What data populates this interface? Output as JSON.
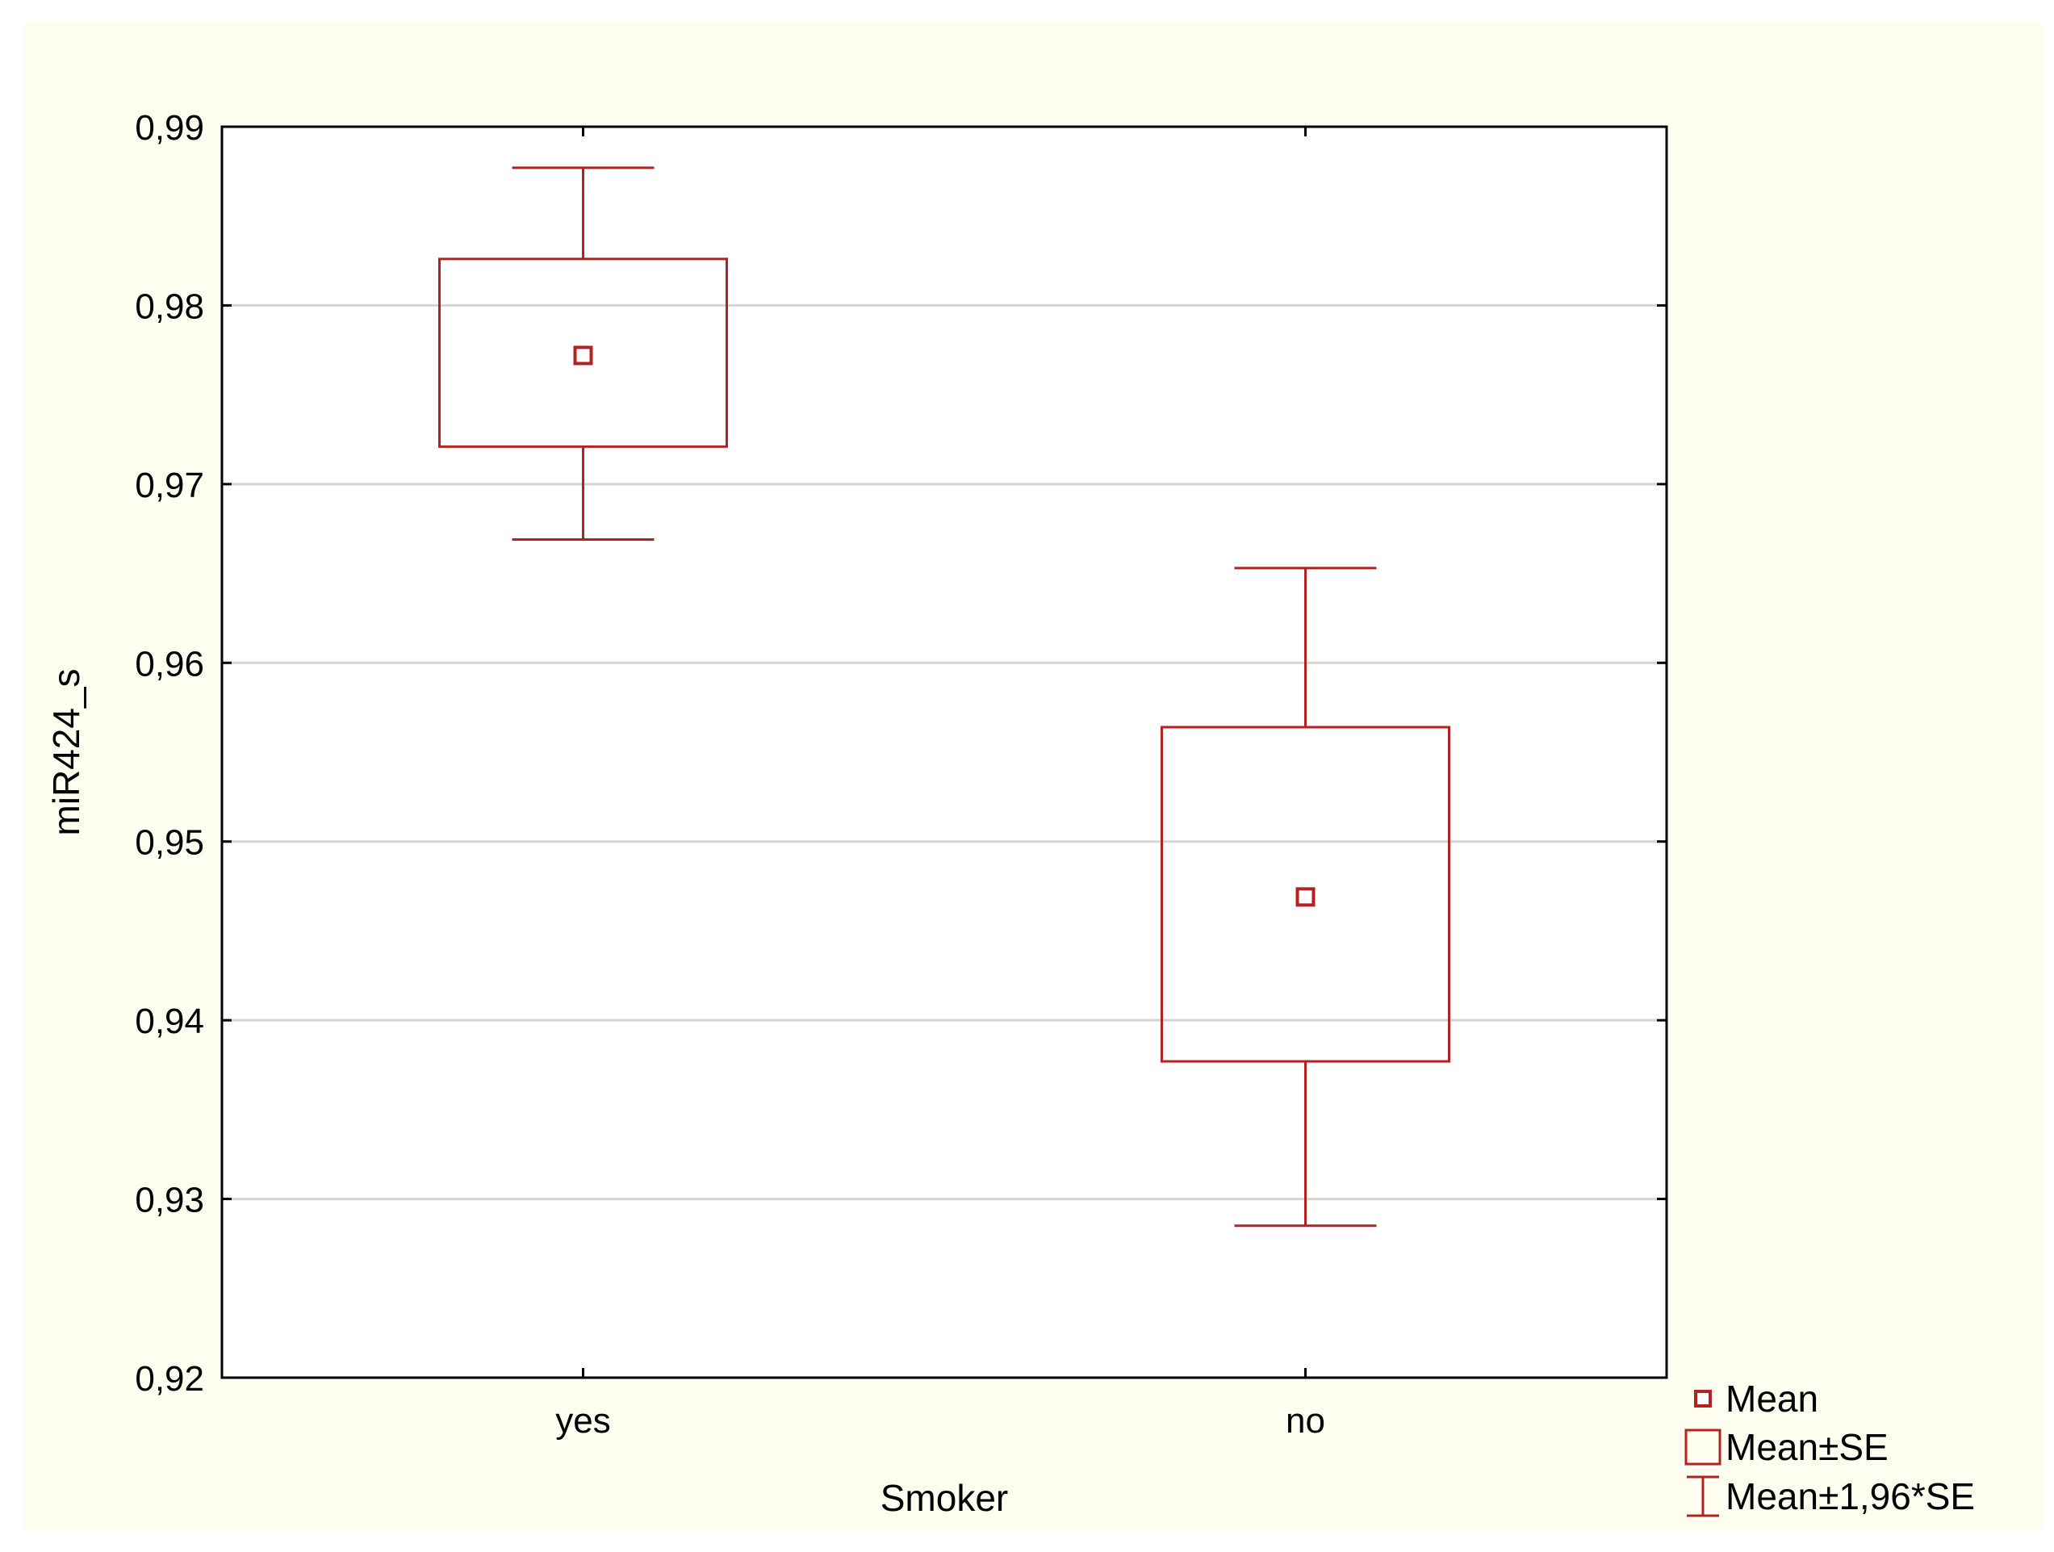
{
  "chart_data": {
    "type": "box",
    "title": "",
    "xlabel": "Smoker",
    "ylabel": "miR424_s",
    "categories": [
      "yes",
      "no"
    ],
    "ylim": [
      0.92,
      0.99
    ],
    "yticks": [
      0.92,
      0.93,
      0.94,
      0.95,
      0.96,
      0.97,
      0.98,
      0.99
    ],
    "ytick_labels": [
      "0,92",
      "0,93",
      "0,94",
      "0,95",
      "0,96",
      "0,97",
      "0,98",
      "0,99"
    ],
    "grid": true,
    "color": "#b22222",
    "background": "#fdfdf0",
    "series": [
      {
        "name": "yes",
        "mean": 0.9772,
        "se_low": 0.9721,
        "se_high": 0.9826,
        "ci_low": 0.9669,
        "ci_high": 0.9877
      },
      {
        "name": "no",
        "mean": 0.9469,
        "se_low": 0.9377,
        "se_high": 0.9564,
        "ci_low": 0.9285,
        "ci_high": 0.9653
      }
    ],
    "legend": {
      "position": "bottom-right",
      "items": [
        {
          "symbol": "small-square",
          "label": "Mean"
        },
        {
          "symbol": "box",
          "label": "Mean±SE"
        },
        {
          "symbol": "whisker",
          "label": "Mean±1,96*SE"
        }
      ]
    }
  }
}
